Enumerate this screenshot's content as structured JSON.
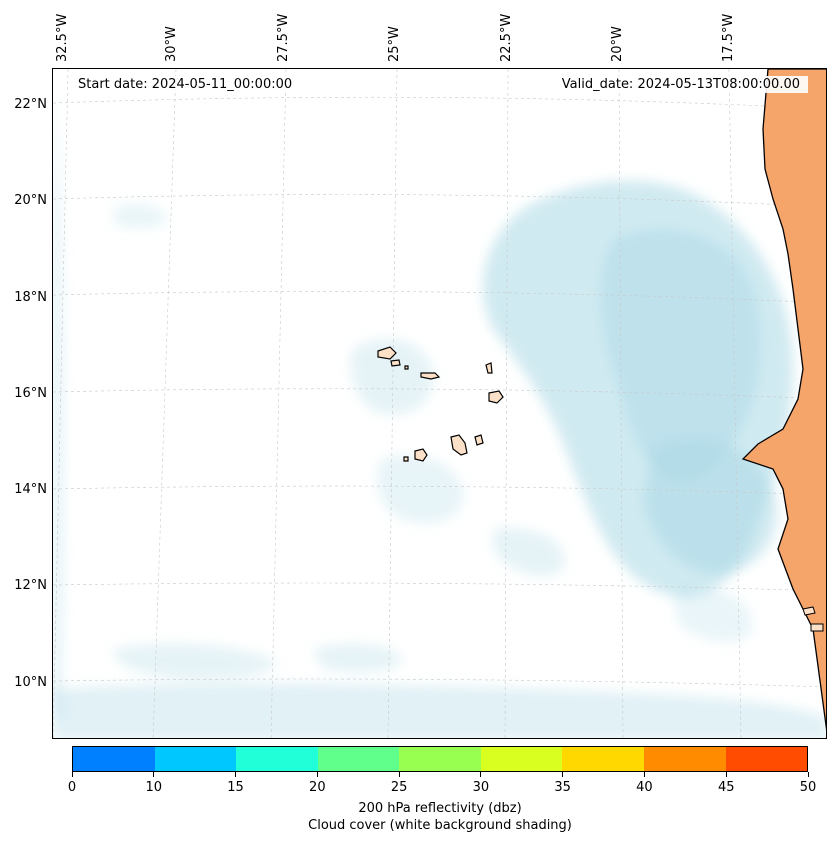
{
  "map": {
    "start_label": "Start date: 2024-05-11_00:00:00",
    "valid_label": "Valid_date: 2024-05-13T08:00:00.00",
    "lon_ticks": [
      "32.5°W",
      "30°W",
      "27.5°W",
      "25°W",
      "22.5°W",
      "20°W",
      "17.5°W"
    ],
    "lat_ticks": [
      "22°N",
      "20°N",
      "18°N",
      "16°N",
      "14°N",
      "12°N",
      "10°N"
    ],
    "colors": {
      "land": "#f5a46a",
      "cloud": "#a9d8e6",
      "island_fill": "#fde0c8",
      "grid": "#c8c8c8"
    }
  },
  "colorbar": {
    "ticks": [
      "0",
      "10",
      "15",
      "20",
      "25",
      "30",
      "35",
      "40",
      "45",
      "50"
    ],
    "colors": [
      "#0080ff",
      "#00c8ff",
      "#20ffd8",
      "#60ff8c",
      "#98ff50",
      "#d8ff20",
      "#ffd800",
      "#ff8c00",
      "#ff4c00"
    ],
    "label_line1": "200 hPa reflectivity (dbz)",
    "label_line2": "Cloud cover (white background shading)"
  }
}
